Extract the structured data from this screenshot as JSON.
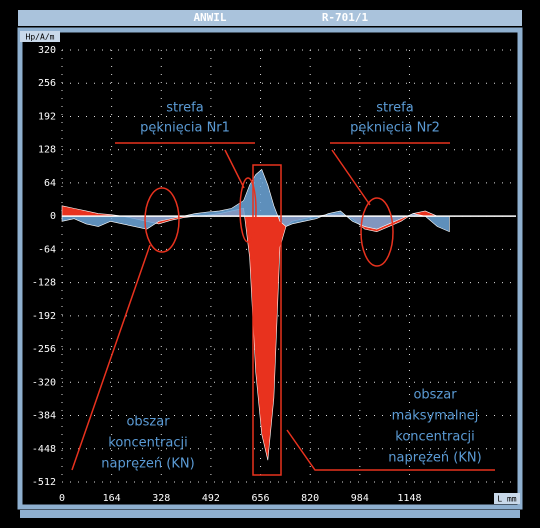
{
  "header": {
    "left": "ANWIL",
    "right": "R-701/1"
  },
  "chart_data": {
    "type": "area",
    "y_label": "Hp/A/m",
    "x_label": "L mm",
    "x": [
      0,
      40,
      80,
      120,
      160,
      200,
      240,
      280,
      320,
      360,
      400,
      440,
      480,
      520,
      560,
      600,
      620,
      640,
      660,
      680,
      700,
      720,
      740,
      760,
      800,
      840,
      880,
      920,
      960,
      1000,
      1040,
      1080,
      1120,
      1160,
      1200,
      1240,
      1280
    ],
    "series": [
      {
        "color": "#e8321e",
        "values": [
          20,
          15,
          10,
          5,
          3,
          0,
          -5,
          -10,
          -15,
          -8,
          -3,
          0,
          2,
          5,
          10,
          15,
          -80,
          -300,
          -420,
          -470,
          -350,
          -60,
          -20,
          -10,
          -5,
          0,
          3,
          5,
          -5,
          -25,
          -30,
          -20,
          -10,
          5,
          10,
          0,
          0
        ]
      },
      {
        "color": "#6fa8dc",
        "values": [
          -10,
          -5,
          -15,
          -20,
          -10,
          -15,
          -20,
          -25,
          -10,
          -5,
          0,
          5,
          8,
          10,
          15,
          30,
          60,
          80,
          90,
          60,
          20,
          -10,
          -20,
          -15,
          -10,
          -5,
          5,
          10,
          -10,
          -20,
          -25,
          -15,
          -5,
          5,
          0,
          -20,
          -30
        ]
      }
    ],
    "xlim": [
      0,
      1500
    ],
    "ylim": [
      -512,
      320
    ],
    "xticks": [
      0,
      164,
      328,
      492,
      656,
      820,
      984,
      1148
    ],
    "yticks": [
      -512,
      -448,
      -384,
      -320,
      -256,
      -192,
      -128,
      -64,
      0,
      64,
      128,
      192,
      256,
      320
    ],
    "grid": true,
    "annotations": [
      [
        "strefa",
        "pęknięcia Nr1"
      ],
      [
        "strefa",
        "pęknięcia Nr2"
      ],
      [
        "obszar",
        "koncentracji",
        "naprężeń (KN)"
      ],
      [
        "obszar",
        "maksymalnej",
        "koncentracji",
        "naprężeń (KN)"
      ]
    ]
  }
}
